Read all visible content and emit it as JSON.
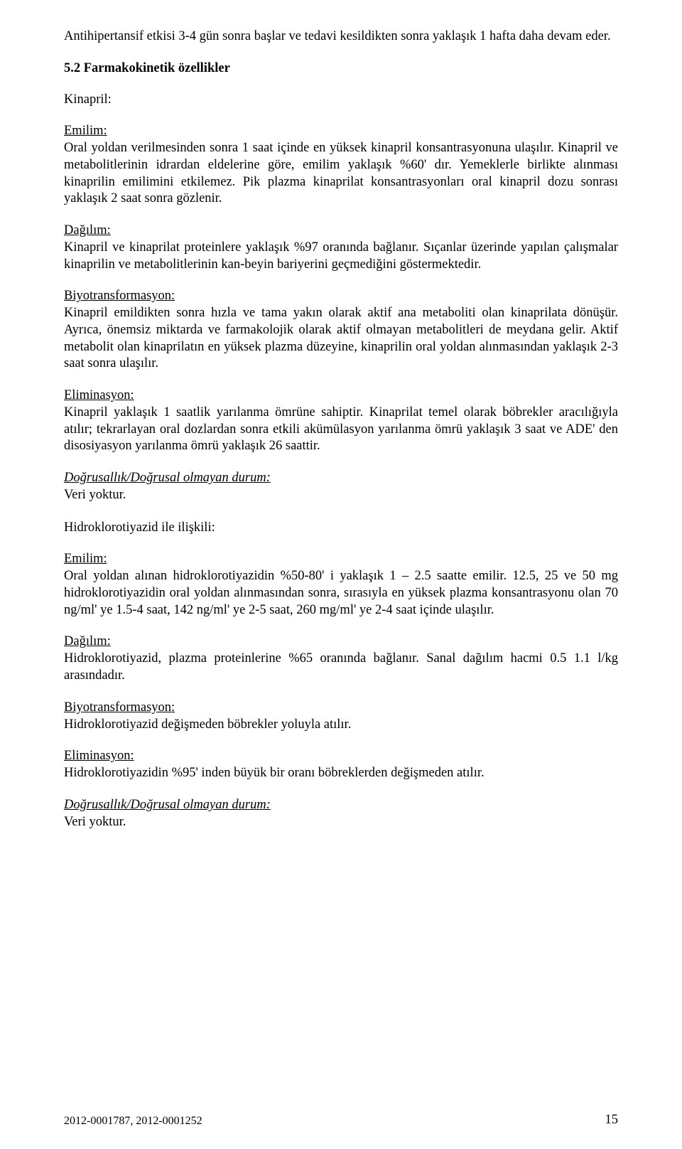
{
  "intro": "Antihipertansif etkisi 3-4 gün sonra başlar ve tedavi kesildikten sonra yaklaşık 1 hafta daha devam eder.",
  "sec52_title": "5.2 Farmakokinetik özellikler",
  "kinapril_label": "Kinapril:",
  "emilim_label": "Emilim:",
  "emilim_text": "Oral yoldan verilmesinden sonra 1 saat içinde en yüksek kinapril konsantrasyonuna ulaşılır. Kinapril ve metabolitlerinin idrardan eldelerine göre, emilim yaklaşık %60' dır. Yemeklerle birlikte alınması kinaprilin emilimini etkilemez. Pik plazma kinaprilat konsantrasyonları oral kinapril dozu sonrası yaklaşık 2 saat sonra gözlenir.",
  "dagilim_label": "Dağılım:",
  "dagilim_text": "Kinapril ve kinaprilat proteinlere yaklaşık %97 oranında bağlanır. Sıçanlar üzerinde yapılan çalışmalar kinaprilin ve metabolitlerinin kan-beyin bariyerini geçmediğini göstermektedir.",
  "biyo_label": "Biyotransformasyon:",
  "biyo_text": "Kinapril emildikten sonra hızla ve tama yakın olarak aktif ana metaboliti olan kinaprilata dönüşür. Ayrıca, önemsiz miktarda ve farmakolojik olarak aktif olmayan metabolitleri de meydana gelir. Aktif metabolit olan kinaprilatın en yüksek plazma düzeyine, kinaprilin oral yoldan alınmasından yaklaşık 2-3 saat sonra ulaşılır.",
  "elim_label": "Eliminasyon:",
  "elim_text": "Kinapril yaklaşık 1 saatlik yarılanma ömrüne sahiptir. Kinaprilat temel olarak böbrekler aracılığıyla atılır; tekrarlayan oral dozlardan sonra etkili akümülasyon yarılanma ömrü yaklaşık 3 saat ve ADE' den disosiyasyon yarılanma ömrü  yaklaşık 26 saattir.",
  "dogrusal_label": "Doğrusallık/Doğrusal olmayan durum:",
  "veri_yoktur": "Veri yoktur.",
  "hct_rel_label": "Hidroklorotiyazid ile ilişkili:",
  "hct_emilim_text": "Oral yoldan alınan hidroklorotiyazidin %50-80' i yaklaşık 1 – 2.5 saatte emilir. 12.5, 25 ve 50 mg hidroklorotiyazidin oral yoldan alınmasından sonra, sırasıyla en yüksek plazma konsantrasyonu olan 70 ng/ml' ye 1.5-4 saat, 142 ng/ml' ye 2-5 saat, 260 mg/ml' ye 2-4 saat içinde ulaşılır.",
  "hct_dagilim_text": "Hidroklorotiyazid, plazma proteinlerine %65 oranında bağlanır. Sanal dağılım hacmi 0.5 1.1 l/kg arasındadır.",
  "hct_biyo_text": "Hidroklorotiyazid değişmeden böbrekler yoluyla atılır.",
  "hct_elim_text": "Hidroklorotiyazidin %95' inden büyük bir oranı böbreklerden değişmeden atılır.",
  "footer_doc": "2012-0001787, 2012-0001252",
  "page_no": "15"
}
